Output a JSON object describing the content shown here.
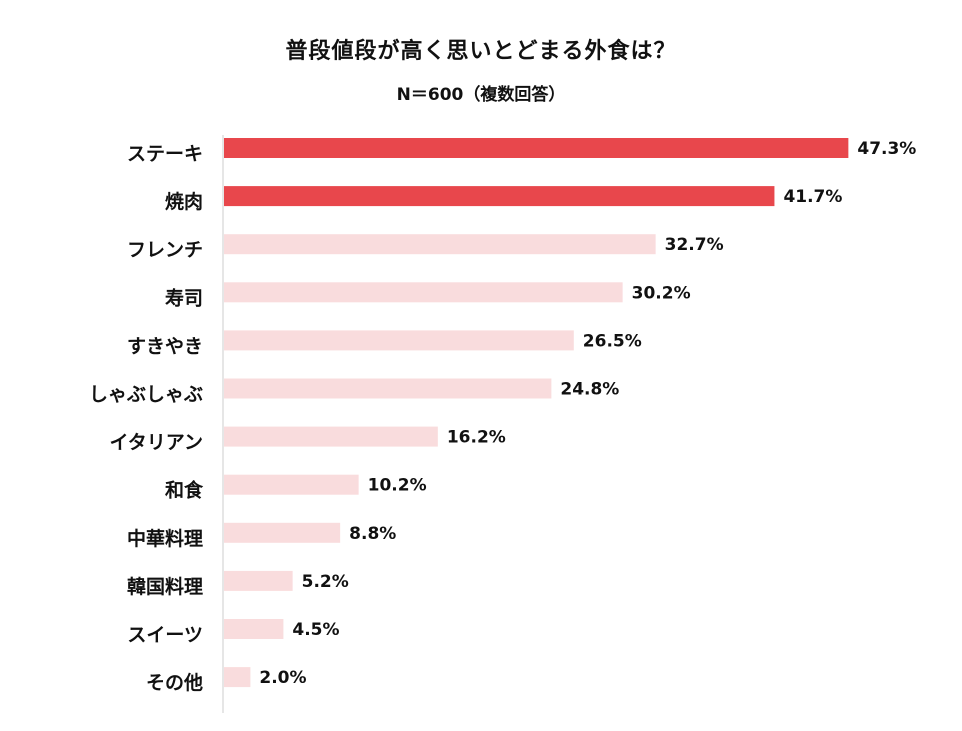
{
  "chart_data": {
    "type": "bar",
    "orientation": "horizontal",
    "title": "普段値段が高く思いとどまる外食は？",
    "subtitle": "N＝600（複数回答）",
    "categories": [
      "ステーキ",
      "焼肉",
      "フレンチ",
      "寿司",
      "すきやき",
      "しゃぶしゃぶ",
      "イタリアン",
      "和食",
      "中華料理",
      "韓国料理",
      "スイーツ",
      "その他"
    ],
    "values": [
      47.3,
      41.7,
      32.7,
      30.2,
      26.5,
      24.8,
      16.2,
      10.2,
      8.8,
      5.2,
      4.5,
      2.0
    ],
    "value_labels": [
      "47.3%",
      "41.7%",
      "32.7%",
      "30.2%",
      "26.5%",
      "24.8%",
      "16.2%",
      "10.2%",
      "8.8%",
      "5.2%",
      "4.5%",
      "2.0%"
    ],
    "highlight_count": 2,
    "colors": {
      "highlight": "#e8474c",
      "normal": "#f9dcdd",
      "axis": "#cccccc",
      "text": "#111111"
    },
    "grid": false,
    "legend": "none"
  }
}
